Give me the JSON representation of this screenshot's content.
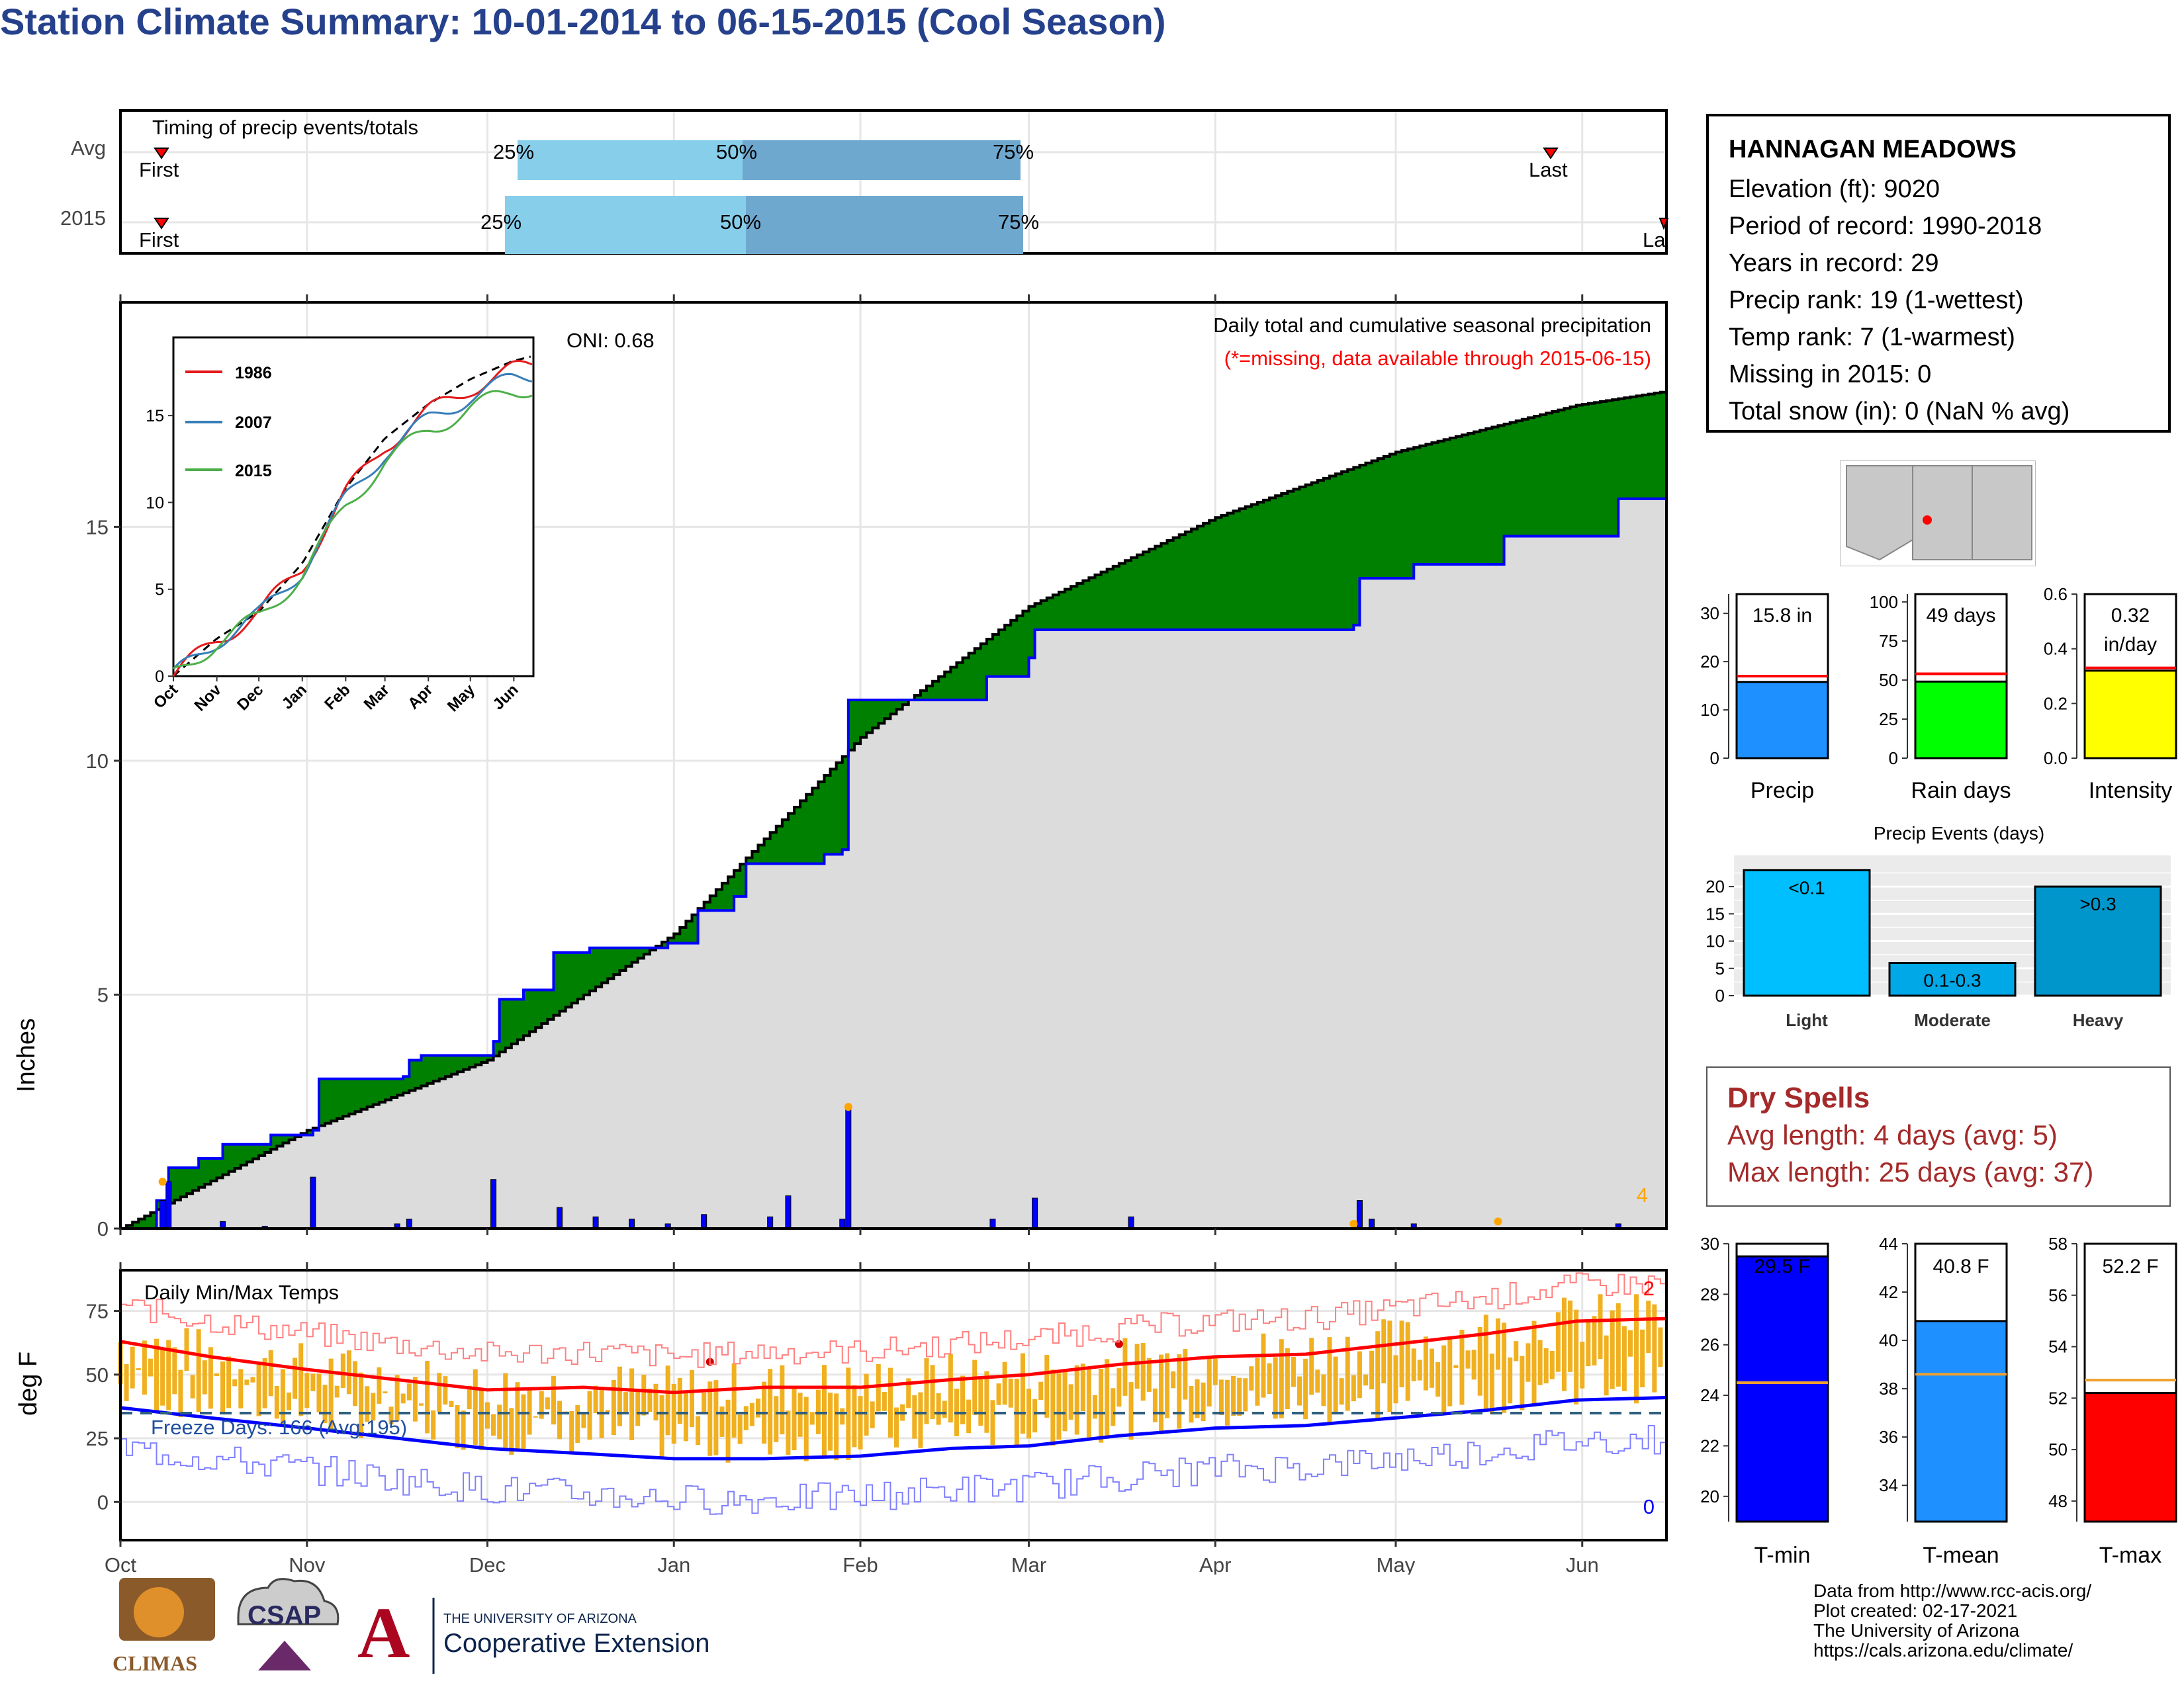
{
  "title": "Station Climate Summary: 10-01-2014 to 06-15-2015 (Cool Season)",
  "colors": {
    "title": "#26418c",
    "cum_avg": "#8a5a00",
    "cum_2015": "#dcdcdc",
    "excess": "#008000",
    "daily_bar": "#0000ff",
    "tmax": "#ff0000",
    "tmin": "#0000ff",
    "temp_bar": "#f0b020",
    "precip_bar": "#1e90ff",
    "rain_bar": "#00ff00",
    "intensity_bar": "#ffff00",
    "events_bar": "#00bfff",
    "drytext": "#a52a2a"
  },
  "timing": {
    "label": "Timing of precip events/totals",
    "rows": [
      {
        "name": "Avg",
        "first": "First",
        "last": "Last",
        "p25": "25%",
        "p50": "50%",
        "p75": "75%"
      },
      {
        "name": "2015",
        "first": "First",
        "last": "La",
        "p25": "25%",
        "p50": "50%",
        "p75": "75%"
      }
    ]
  },
  "station": {
    "name": "HANNAGAN MEADOWS",
    "elevation": "Elevation (ft): 9020",
    "period": "Period of record: 1990-2018",
    "years": "Years in record: 29",
    "precip_rank": "Precip rank: 19 (1-wettest)",
    "temp_rank": "Temp rank: 7 (1-warmest)",
    "missing": "Missing in 2015: 0",
    "snow": "Total snow (in): 0 (NaN % avg)"
  },
  "precip_panel": {
    "ylabel": "Inches",
    "caption1": "Daily total and cumulative seasonal precipitation",
    "caption2": "(*=missing, data available through 2015-06-15)",
    "oni": "ONI: 0.68",
    "corner_count": "4"
  },
  "temp_panel": {
    "ylabel": "deg F",
    "label": "Daily Min/Max Temps",
    "freeze": "Freeze Days: 166 (Avg:195)",
    "count_high": "2",
    "count_low": "0"
  },
  "months": [
    "Oct",
    "Nov",
    "Dec",
    "Jan",
    "Feb",
    "Mar",
    "Apr",
    "May",
    "Jun"
  ],
  "summary_bars": [
    {
      "label": "Precip",
      "value_text": "15.8 in",
      "value": 15.8,
      "avg": 17.0,
      "ymax": 34,
      "ticks": [
        0,
        10,
        20,
        30
      ]
    },
    {
      "label": "Rain days",
      "value_text": "49 days",
      "value": 49,
      "avg": 54,
      "ymax": 105,
      "ticks": [
        0,
        25,
        50,
        75,
        100
      ]
    },
    {
      "label": "Intensity",
      "value_text": "0.32",
      "value_text2": "in/day",
      "value": 0.32,
      "avg": 0.33,
      "ymax": 0.6,
      "ticks": [
        "0.0",
        "0.2",
        "0.4",
        "0.6"
      ]
    }
  ],
  "events": {
    "title": "Precip Events (days)",
    "categories": [
      "Light",
      "Moderate",
      "Heavy"
    ],
    "labels": [
      "<0.1",
      "0.1-0.3",
      ">0.3"
    ],
    "values": [
      23,
      6,
      20
    ],
    "ticks": [
      0,
      5,
      10,
      15,
      20
    ]
  },
  "dry_spells": {
    "title": "Dry Spells",
    "avg": "Avg length: 4 days (avg: 5)",
    "max": "Max length: 25 days (avg: 37)"
  },
  "temp_bars": [
    {
      "label": "T-min",
      "value_text": "29.5 F",
      "value": 29.5,
      "avg": 24.5,
      "ymin": 19,
      "ymax": 30,
      "ticks": [
        20,
        22,
        24,
        26,
        28,
        30
      ]
    },
    {
      "label": "T-mean",
      "value_text": "40.8 F",
      "value": 40.8,
      "avg": 38.6,
      "ymin": 32.5,
      "ymax": 44,
      "ticks": [
        34,
        36,
        38,
        40,
        42,
        44
      ]
    },
    {
      "label": "T-max",
      "value_text": "52.2 F",
      "value": 52.2,
      "avg": 52.7,
      "ymin": 47.2,
      "ymax": 58,
      "ticks": [
        48,
        50,
        52,
        54,
        56,
        58
      ]
    }
  ],
  "inset": {
    "legend": [
      "1986",
      "2007",
      "2015"
    ],
    "legend_colors": [
      "#e41a1c",
      "#377eb8",
      "#4daf4a"
    ],
    "yticks": [
      0,
      5,
      10,
      15
    ],
    "xticks": [
      "Oct",
      "Nov",
      "Dec",
      "Jan",
      "Feb",
      "Mar",
      "Apr",
      "May",
      "Jun"
    ]
  },
  "credits": [
    "Data from http://www.rcc-acis.org/",
    "Plot created: 02-17-2021",
    "The University of Arizona",
    "https://cals.arizona.edu/climate/"
  ],
  "logos": {
    "climas": "CLIMAS",
    "csap": "CSAP",
    "ua_small": "THE UNIVERSITY OF ARIZONA",
    "ua_big": "Cooperative Extension"
  },
  "chart_data": {
    "type": "area",
    "x_unit": "day of season (Oct 1 = 0)",
    "cumulative_avg": [
      [
        0,
        0
      ],
      [
        31,
        2.1
      ],
      [
        61,
        3.6
      ],
      [
        92,
        6.3
      ],
      [
        123,
        10.5
      ],
      [
        151,
        13.3
      ],
      [
        182,
        15.2
      ],
      [
        212,
        16.6
      ],
      [
        242,
        17.6
      ],
      [
        257,
        17.9
      ]
    ],
    "cumulative_2015": [
      [
        0,
        0
      ],
      [
        6,
        0.6
      ],
      [
        8,
        1.3
      ],
      [
        13,
        1.5
      ],
      [
        17,
        1.8
      ],
      [
        25,
        2.0
      ],
      [
        32,
        2.1
      ],
      [
        33,
        3.2
      ],
      [
        47,
        3.25
      ],
      [
        48,
        3.6
      ],
      [
        50,
        3.7
      ],
      [
        59,
        3.7
      ],
      [
        62,
        4.0
      ],
      [
        63,
        4.9
      ],
      [
        67,
        5.1
      ],
      [
        72,
        5.9
      ],
      [
        78,
        6.0
      ],
      [
        91,
        6.1
      ],
      [
        96,
        6.8
      ],
      [
        102,
        7.1
      ],
      [
        104,
        7.8
      ],
      [
        117,
        8.0
      ],
      [
        120,
        8.1
      ],
      [
        121,
        11.3
      ],
      [
        142,
        11.3
      ],
      [
        144,
        11.8
      ],
      [
        151,
        12.2
      ],
      [
        152,
        12.8
      ],
      [
        205,
        12.9
      ],
      [
        206,
        13.9
      ],
      [
        215,
        14.2
      ],
      [
        230,
        14.8
      ],
      [
        249,
        15.6
      ],
      [
        257,
        15.8
      ]
    ],
    "daily_precip": [
      [
        7,
        0.6
      ],
      [
        8,
        1.0
      ],
      [
        17,
        0.15
      ],
      [
        24,
        0.05
      ],
      [
        32,
        1.1
      ],
      [
        46,
        0.1
      ],
      [
        48,
        0.2
      ],
      [
        62,
        1.05
      ],
      [
        73,
        0.45
      ],
      [
        79,
        0.25
      ],
      [
        85,
        0.2
      ],
      [
        91,
        0.1
      ],
      [
        97,
        0.3
      ],
      [
        108,
        0.25
      ],
      [
        111,
        0.7
      ],
      [
        120,
        0.2
      ],
      [
        121,
        2.6
      ],
      [
        145,
        0.2
      ],
      [
        152,
        0.65
      ],
      [
        168,
        0.25
      ],
      [
        206,
        0.6
      ],
      [
        208,
        0.2
      ],
      [
        215,
        0.1
      ],
      [
        249,
        0.1
      ]
    ],
    "tmax_avg": [
      [
        0,
        63
      ],
      [
        15,
        57
      ],
      [
        31,
        52
      ],
      [
        46,
        48
      ],
      [
        61,
        44
      ],
      [
        77,
        45
      ],
      [
        92,
        43
      ],
      [
        107,
        45
      ],
      [
        123,
        45
      ],
      [
        138,
        48
      ],
      [
        151,
        50
      ],
      [
        166,
        54
      ],
      [
        182,
        57
      ],
      [
        197,
        58
      ],
      [
        212,
        62
      ],
      [
        227,
        66
      ],
      [
        242,
        71
      ],
      [
        257,
        72
      ]
    ],
    "tmin_avg": [
      [
        0,
        37
      ],
      [
        15,
        33
      ],
      [
        31,
        29
      ],
      [
        46,
        25
      ],
      [
        61,
        21
      ],
      [
        77,
        19
      ],
      [
        92,
        17
      ],
      [
        107,
        17
      ],
      [
        123,
        18
      ],
      [
        138,
        21
      ],
      [
        151,
        22
      ],
      [
        166,
        26
      ],
      [
        182,
        29
      ],
      [
        197,
        30
      ],
      [
        212,
        33
      ],
      [
        227,
        36
      ],
      [
        242,
        40
      ],
      [
        257,
        41
      ]
    ],
    "yrange_precip": [
      0,
      19.8
    ],
    "yrange_temp": [
      -15,
      91
    ]
  }
}
